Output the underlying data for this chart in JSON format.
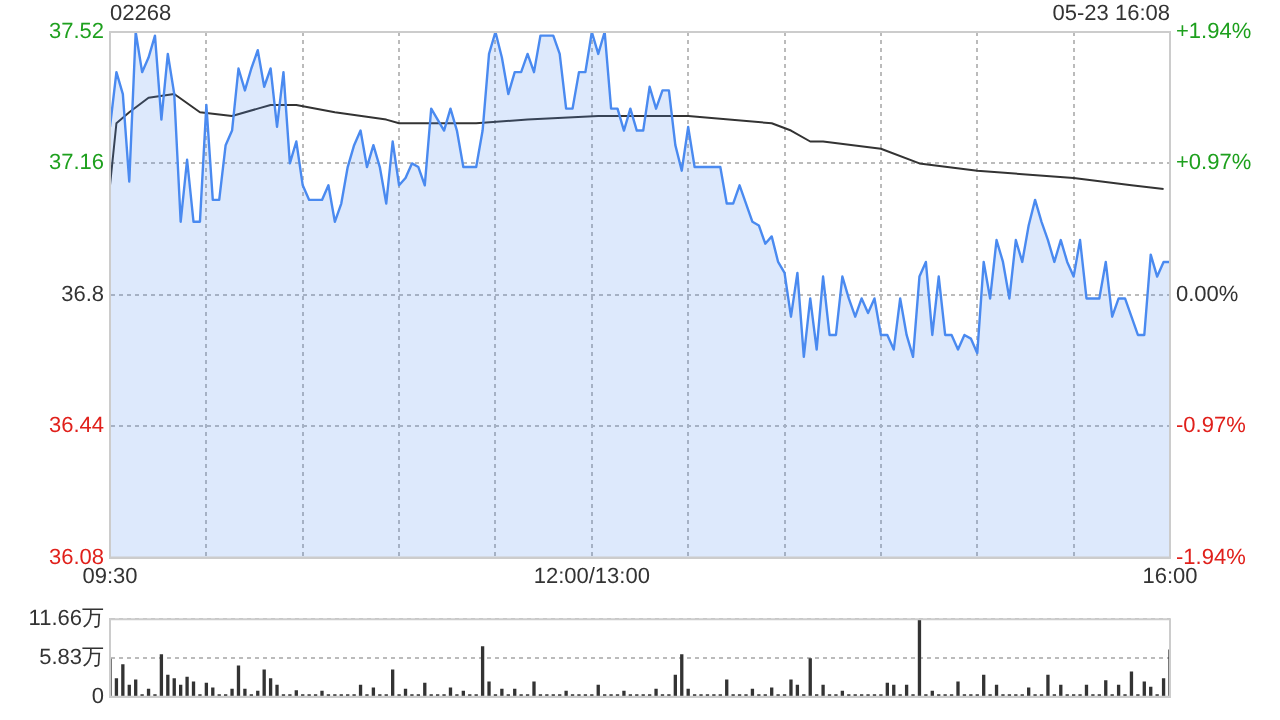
{
  "chart_data": [
    {
      "type": "line",
      "title": "02268",
      "annotations": [
        "05-23 16:08"
      ],
      "categories": [
        "09:30",
        null,
        null,
        null,
        null,
        null,
        null,
        null,
        null,
        null,
        null,
        null,
        null,
        null,
        null,
        null,
        null,
        null,
        null,
        null,
        null,
        null,
        null,
        null,
        null,
        null,
        null,
        null,
        null,
        null,
        null,
        null,
        null,
        null,
        null,
        null,
        null,
        null,
        null,
        null,
        null,
        null,
        null,
        null,
        null,
        null,
        null,
        null,
        null,
        null,
        null,
        null,
        null,
        null,
        null,
        null,
        null,
        null,
        null,
        null,
        null,
        null,
        null,
        null,
        null,
        null,
        null,
        null,
        null,
        null,
        null,
        null,
        null,
        null,
        null,
        "12:00/13:00",
        null,
        null,
        null,
        null,
        null,
        null,
        null,
        null,
        null,
        null,
        null,
        null,
        null,
        null,
        null,
        null,
        null,
        null,
        null,
        null,
        null,
        null,
        null,
        null,
        null,
        null,
        null,
        null,
        null,
        null,
        null,
        null,
        null,
        null,
        null,
        null,
        null,
        null,
        null,
        null,
        null,
        null,
        null,
        null,
        null,
        null,
        null,
        null,
        null,
        null,
        null,
        null,
        null,
        null,
        null,
        null,
        null,
        null,
        null,
        null,
        null,
        null,
        null,
        null,
        null,
        null,
        null,
        null,
        null,
        null,
        null,
        null,
        null,
        null,
        null,
        null,
        null,
        null,
        null,
        null,
        null,
        null,
        null,
        null,
        null,
        null,
        null,
        null,
        null,
        "16:00"
      ],
      "ylim": [
        36.08,
        37.52
      ],
      "yticks": [
        36.08,
        36.44,
        36.8,
        37.16,
        37.52
      ],
      "y2lim": [
        -1.94,
        1.94
      ],
      "y2ticks": [
        {
          "value": -1.94,
          "label": "-1.94%"
        },
        {
          "value": -0.97,
          "label": "-0.97%"
        },
        {
          "value": 0,
          "label": "0.00%"
        },
        {
          "value": 0.97,
          "label": "+0.97%"
        },
        {
          "value": 1.94,
          "label": "+1.94%"
        }
      ],
      "grid": true,
      "legend": false,
      "marker": "none",
      "series": [
        {
          "type": "area",
          "color": "#4a8af0",
          "values": [
            37.26,
            37.41,
            37.35,
            37.11,
            37.52,
            37.41,
            37.45,
            37.51,
            37.28,
            37.46,
            37.35,
            37.0,
            37.17,
            37.0,
            37.0,
            37.32,
            37.06,
            37.06,
            37.21,
            37.25,
            37.42,
            37.36,
            37.42,
            37.47,
            37.37,
            37.42,
            37.26,
            37.41,
            37.16,
            37.22,
            37.1,
            37.06,
            37.06,
            37.06,
            37.1,
            37.0,
            37.05,
            37.15,
            37.21,
            37.25,
            37.15,
            37.21,
            37.15,
            37.05,
            37.22,
            37.1,
            37.12,
            37.16,
            37.15,
            37.1,
            37.31,
            37.28,
            37.25,
            37.31,
            37.25,
            37.15,
            37.15,
            37.15,
            37.25,
            37.46,
            37.52,
            37.45,
            37.35,
            37.41,
            37.41,
            37.46,
            37.41,
            37.51,
            37.51,
            37.51,
            37.46,
            37.31,
            37.31,
            37.41,
            37.41,
            37.52,
            37.46,
            37.52,
            37.31,
            37.31,
            37.25,
            37.31,
            37.25,
            37.25,
            37.37,
            37.31,
            37.36,
            37.36,
            37.21,
            37.14,
            37.26,
            37.15,
            37.15,
            37.15,
            37.15,
            37.15,
            37.05,
            37.05,
            37.1,
            37.05,
            37.0,
            36.99,
            36.94,
            36.96,
            36.89,
            36.86,
            36.74,
            36.86,
            36.63,
            36.79,
            36.65,
            36.85,
            36.69,
            36.69,
            36.85,
            36.79,
            36.74,
            36.79,
            36.75,
            36.79,
            36.69,
            36.69,
            36.65,
            36.79,
            36.69,
            36.63,
            36.85,
            36.89,
            36.69,
            36.85,
            36.69,
            36.69,
            36.65,
            36.69,
            36.68,
            36.64,
            36.89,
            36.79,
            36.95,
            36.89,
            36.79,
            36.95,
            36.89,
            36.99,
            37.06,
            37.0,
            36.95,
            36.89,
            36.95,
            36.89,
            36.85,
            36.95,
            36.79,
            36.79,
            36.79,
            36.89,
            36.74,
            36.79,
            36.79,
            36.74,
            36.69,
            36.69,
            36.91,
            36.85,
            36.89,
            36.89
          ]
        },
        {
          "color": "#333333",
          "values": [
            37.1,
            37.27,
            null,
            37.3,
            null,
            null,
            37.34,
            null,
            null,
            null,
            37.35,
            null,
            null,
            null,
            37.3,
            null,
            null,
            null,
            null,
            37.29,
            null,
            null,
            null,
            37.31,
            null,
            37.32,
            null,
            null,
            null,
            37.32,
            null,
            null,
            null,
            null,
            null,
            37.3,
            null,
            null,
            null,
            null,
            null,
            null,
            null,
            37.28,
            null,
            37.27,
            null,
            null,
            null,
            null,
            37.27,
            null,
            null,
            null,
            null,
            null,
            null,
            37.27,
            null,
            null,
            null,
            null,
            null,
            null,
            null,
            37.28,
            null,
            null,
            null,
            null,
            null,
            null,
            null,
            null,
            null,
            null,
            37.29,
            null,
            null,
            null,
            null,
            null,
            null,
            null,
            null,
            null,
            null,
            null,
            null,
            null,
            37.29,
            null,
            null,
            null,
            null,
            null,
            null,
            null,
            null,
            null,
            null,
            null,
            null,
            37.27,
            null,
            null,
            37.25,
            null,
            null,
            37.22,
            null,
            37.22,
            null,
            null,
            null,
            null,
            null,
            null,
            null,
            null,
            37.2,
            null,
            null,
            null,
            null,
            null,
            37.16,
            null,
            null,
            null,
            null,
            null,
            null,
            null,
            null,
            37.14,
            null,
            null,
            null,
            null,
            null,
            null,
            null,
            null,
            null,
            null,
            null,
            null,
            null,
            null,
            37.12,
            null,
            null,
            null,
            null,
            null,
            null,
            null,
            null,
            37.1,
            null,
            null,
            null,
            null,
            37.09,
            null
          ]
        }
      ]
    },
    {
      "type": "bar",
      "color": "#333333",
      "tick_labels": "y",
      "grid": "y",
      "legend": false,
      "categories": [
        null,
        null,
        null,
        null,
        null,
        null,
        null,
        null,
        null,
        null,
        null,
        null,
        null,
        null,
        null,
        null,
        null,
        null,
        null,
        null,
        null,
        null,
        null,
        null,
        null,
        null,
        null,
        null,
        null,
        null,
        null,
        null,
        null,
        null,
        null,
        null,
        null,
        null,
        null,
        null,
        null,
        null,
        null,
        null,
        null,
        null,
        null,
        null,
        null,
        null,
        null,
        null,
        null,
        null,
        null,
        null,
        null,
        null,
        null,
        null,
        null,
        null,
        null,
        null,
        null,
        null,
        null,
        null,
        null,
        null,
        null,
        null,
        null,
        null,
        null,
        null,
        null,
        null,
        null,
        null,
        null,
        null,
        null,
        null,
        null,
        null,
        null,
        null,
        null,
        null,
        null,
        null,
        null,
        null,
        null,
        null,
        null,
        null,
        null,
        null,
        null,
        null,
        null,
        null,
        null,
        null,
        null,
        null,
        null,
        null,
        null,
        null,
        null,
        null,
        null,
        null,
        null,
        null,
        null,
        null,
        null,
        null,
        null,
        null,
        null,
        null,
        null,
        null,
        null,
        null,
        null,
        null,
        null,
        null,
        null,
        null,
        null,
        null,
        null,
        null,
        null,
        null,
        null,
        null,
        null,
        null,
        null,
        null,
        null,
        null,
        null,
        null,
        null,
        null,
        null,
        null,
        null,
        null,
        null,
        null,
        null,
        null,
        null,
        null,
        null,
        null
      ],
      "ylim": [
        0,
        11.66
      ],
      "yticks": [
        {
          "value": 0,
          "label": "0"
        },
        {
          "value": 5.83,
          "label": "5.83万"
        },
        {
          "value": 11.66,
          "label": "11.66万"
        }
      ],
      "values": [
        5.6,
        2.7,
        4.8,
        1.7,
        2.5,
        0.3,
        1.1,
        0.3,
        6.3,
        3.2,
        2.7,
        1.7,
        2.9,
        2.2,
        0.3,
        2.0,
        1.3,
        0.3,
        0.3,
        1.1,
        4.6,
        1.1,
        0.3,
        0.8,
        4.0,
        2.7,
        1.7,
        0.3,
        0.3,
        0.9,
        0.3,
        0.3,
        0.3,
        0.8,
        0.3,
        0.3,
        0.3,
        0.3,
        0.3,
        1.7,
        0.3,
        1.3,
        0.3,
        0.3,
        4.0,
        0.3,
        1.1,
        0.3,
        0.3,
        2.0,
        0.3,
        0.3,
        0.3,
        1.3,
        0.3,
        0.8,
        0.3,
        0.3,
        7.5,
        2.2,
        0.3,
        1.1,
        0.3,
        1.1,
        0.3,
        0.3,
        2.2,
        0.3,
        0.3,
        0.3,
        0.3,
        0.8,
        0.3,
        0.3,
        0.3,
        0.3,
        1.7,
        0.3,
        0.3,
        0.3,
        0.8,
        0.3,
        0.3,
        0.3,
        0.3,
        1.1,
        0.3,
        0.3,
        3.2,
        6.3,
        1.1,
        0.3,
        0.3,
        0.3,
        0.3,
        0.3,
        2.5,
        0.3,
        0.3,
        0.3,
        1.1,
        0.3,
        0.3,
        1.3,
        0.3,
        0.3,
        2.5,
        1.7,
        0.3,
        5.7,
        0.3,
        1.7,
        0.3,
        0.3,
        0.8,
        0.3,
        0.3,
        0.3,
        0.3,
        0.3,
        0.3,
        2.0,
        1.7,
        0.3,
        1.7,
        0.3,
        11.66,
        0.3,
        0.8,
        0.3,
        0.3,
        0.3,
        2.2,
        0.3,
        0.3,
        0.3,
        3.2,
        0.3,
        1.7,
        0.3,
        0.3,
        0.3,
        0.3,
        1.3,
        0.3,
        0.3,
        3.2,
        0.3,
        1.7,
        0.3,
        0.3,
        0.3,
        1.7,
        0.3,
        0.3,
        2.4,
        0.3,
        1.7,
        0.3,
        3.7,
        0.3,
        2.2,
        1.4,
        0.3,
        2.7,
        7.0
      ]
    }
  ]
}
